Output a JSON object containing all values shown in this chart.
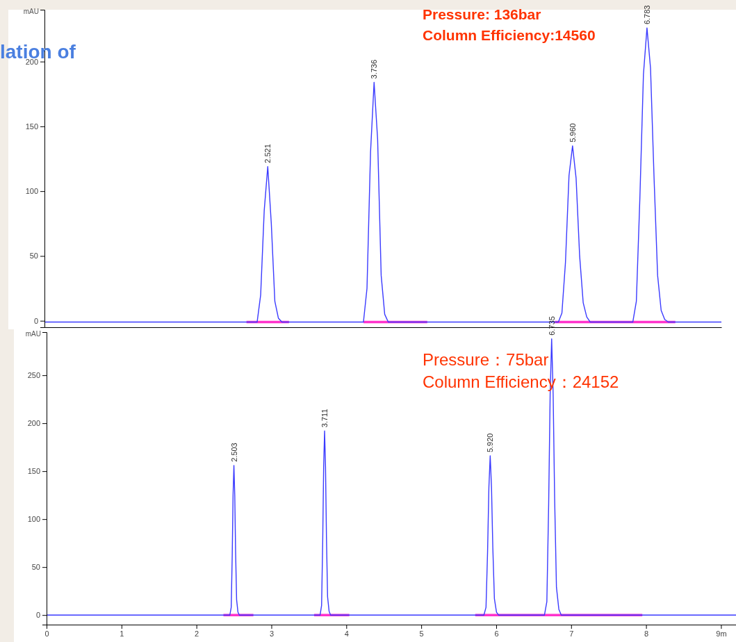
{
  "chart_data": [
    {
      "type": "line",
      "title": "lation of",
      "ylabel": "mAU",
      "tick_labels": "y",
      "grid": false,
      "marker": "none",
      "line_style": "solid",
      "ylim": [
        -5,
        240
      ],
      "yticks": [
        0,
        50,
        100,
        150,
        200
      ],
      "categories": [
        null,
        null,
        null,
        null,
        null,
        null,
        null,
        null,
        null,
        null,
        null,
        null,
        null,
        null,
        null,
        null,
        null,
        null,
        null,
        null,
        null,
        null,
        null,
        null,
        null,
        null,
        null,
        null,
        null,
        null,
        null,
        null,
        null,
        null,
        null,
        null,
        null,
        null,
        null,
        null,
        null,
        null,
        null,
        null,
        null,
        null,
        null,
        null,
        null,
        null,
        null,
        null,
        null,
        null,
        null,
        null,
        null,
        null,
        null,
        null,
        null,
        null,
        null,
        null,
        null,
        null,
        null,
        null,
        null,
        null,
        null,
        null,
        null,
        null,
        null,
        null,
        null,
        null,
        null,
        null,
        null,
        null,
        null,
        null,
        null,
        null,
        null,
        null,
        null,
        null,
        null,
        null,
        null,
        null,
        null,
        null,
        null,
        null,
        null,
        null,
        null,
        null,
        null,
        null,
        null,
        null,
        null,
        null,
        null,
        null,
        null,
        null,
        null,
        null,
        null,
        null,
        null,
        null,
        null,
        null,
        null,
        null,
        null,
        null,
        null,
        null,
        null,
        null,
        null,
        null,
        null,
        null,
        null,
        null,
        null,
        null,
        null,
        null,
        null,
        null,
        null,
        null,
        null,
        null,
        null,
        null,
        null,
        null,
        null,
        null,
        null,
        null,
        null,
        null,
        null,
        null,
        null,
        null,
        null,
        null,
        null,
        null,
        null,
        null,
        null,
        null,
        null,
        null,
        null,
        null,
        null,
        null,
        null,
        null,
        null,
        null,
        null,
        null,
        null,
        null,
        null,
        null,
        null,
        null,
        null,
        null,
        null,
        null,
        null,
        null,
        null,
        null
      ],
      "series": [
        {
          "color": "#3b3bff",
          "values": [
            -1,
            -1,
            -1,
            -1,
            -1,
            -1,
            -1,
            -1,
            -1,
            -1,
            -1,
            -1,
            -1,
            -1,
            -1,
            -1,
            -1,
            -1,
            -1,
            -1,
            -1,
            -1,
            -1,
            -1,
            -1,
            -1,
            -1,
            -1,
            -1,
            -1,
            -1,
            -1,
            -1,
            -1,
            -1,
            -1,
            -1,
            -1,
            -1,
            -1,
            -1,
            -1,
            -1,
            -1,
            -1,
            -1,
            -1,
            -1,
            -1,
            -1,
            -1,
            -1,
            -1,
            -1,
            -1,
            -1,
            -1,
            -1,
            -1,
            -1,
            -1,
            20,
            85,
            119,
            75,
            15,
            2,
            -1,
            -1,
            -1,
            -1,
            -1,
            -1,
            -1,
            -1,
            -1,
            -1,
            -1,
            -1,
            -1,
            -1,
            -1,
            -1,
            -1,
            -1,
            -1,
            -1,
            -1,
            -1,
            -1,
            -1,
            25,
            130,
            184,
            140,
            35,
            5,
            -1,
            -1,
            -1,
            -1,
            -1,
            -1,
            -1,
            -1,
            -1,
            -1,
            -1,
            -1,
            -1,
            -1,
            -1,
            -1,
            -1,
            -1,
            -1,
            -1,
            -1,
            -1,
            -1,
            -1,
            -1,
            -1,
            -1,
            -1,
            -1,
            -1,
            -1,
            -1,
            -1,
            -1,
            -1,
            -1,
            -1,
            -1,
            -1,
            -1,
            -1,
            -1,
            -1,
            -1,
            -1,
            -1,
            -1,
            -1,
            -1,
            6,
            45,
            112,
            135,
            110,
            50,
            14,
            3,
            -1,
            -1,
            -1,
            -1,
            -1,
            -1,
            -1,
            -1,
            -1,
            -1,
            -1,
            -1,
            -1,
            15,
            95,
            190,
            226,
            195,
            110,
            35,
            8,
            1,
            -1,
            -1,
            -1,
            -1,
            -1,
            -1,
            -1,
            -1,
            -1,
            -1,
            -1,
            -1,
            -1,
            -1,
            -1,
            -1
          ]
        },
        {
          "color": "#ff33cc",
          "values": [
            null,
            null,
            null,
            null,
            null,
            null,
            null,
            null,
            null,
            null,
            null,
            null,
            null,
            null,
            null,
            null,
            null,
            null,
            null,
            null,
            null,
            null,
            null,
            null,
            null,
            null,
            null,
            null,
            null,
            null,
            null,
            null,
            null,
            null,
            null,
            null,
            null,
            null,
            null,
            null,
            null,
            null,
            null,
            null,
            null,
            null,
            null,
            null,
            null,
            null,
            null,
            null,
            null,
            null,
            null,
            null,
            null,
            -1,
            -1,
            -1,
            -1,
            -1,
            -1,
            -1,
            -1,
            -1,
            -1,
            -1,
            -1,
            -1,
            null,
            null,
            null,
            null,
            null,
            null,
            null,
            null,
            null,
            null,
            null,
            null,
            null,
            null,
            null,
            null,
            null,
            null,
            null,
            null,
            -1,
            -1,
            -1,
            -1,
            -1,
            -1,
            -1,
            -1,
            -1,
            -1,
            -1,
            -1,
            -1,
            -1,
            -1,
            -1,
            -1,
            -1,
            -1,
            null,
            null,
            null,
            null,
            null,
            null,
            null,
            null,
            null,
            null,
            null,
            null,
            null,
            null,
            null,
            null,
            null,
            null,
            null,
            null,
            null,
            null,
            null,
            null,
            null,
            null,
            null,
            null,
            null,
            null,
            null,
            null,
            null,
            null,
            null,
            -1,
            -1,
            -1,
            -1,
            -1,
            -1,
            -1,
            -1,
            -1,
            -1,
            -1,
            -1,
            -1,
            -1,
            -1,
            -1,
            -1,
            -1,
            -1,
            -1,
            -1,
            -1,
            -1,
            -1,
            -1,
            -1,
            -1,
            -1,
            -1,
            -1,
            -1,
            -1,
            -1,
            -1,
            -1,
            null,
            null,
            null,
            null,
            null,
            null,
            null,
            null,
            null,
            null,
            null,
            null,
            null
          ]
        }
      ],
      "annotations": [
        "Pressure: 136bar",
        "Column Efficiency:14560",
        {
          "text": "2.521",
          "y": 119
        },
        {
          "text": "3.736",
          "y": 184
        },
        {
          "text": "5.960",
          "y": 135
        },
        {
          "text": "6.783",
          "y": 226
        }
      ]
    },
    {
      "type": "line",
      "ylabel": "mAU",
      "grid": false,
      "marker": "none",
      "line_style": "solid",
      "xlim": [
        0,
        9.2
      ],
      "xticks": [
        0,
        1,
        2,
        3,
        4,
        5,
        6,
        7,
        8,
        {
          "value": 9,
          "label": "9m"
        }
      ],
      "ylim": [
        -10,
        295
      ],
      "yticks": [
        0,
        50,
        100,
        150,
        200,
        250
      ],
      "series": [
        {
          "color": "#3b3bff",
          "x": [
            0,
            2.446,
            2.464,
            2.4775,
            2.48875,
            2.5,
            2.51125,
            2.5225,
            2.536,
            2.554,
            2.572,
            3.65,
            3.67,
            3.685,
            3.6975,
            3.71,
            3.7225,
            3.735,
            3.75,
            3.77,
            3.79,
            5.836,
            5.864,
            5.885,
            5.9025,
            5.92,
            5.9375,
            5.955,
            5.976,
            6.004,
            6.032,
            6.644,
            6.676,
            6.7,
            6.72,
            6.74,
            6.76,
            6.78,
            6.804,
            6.836,
            6.868,
            9.2
          ],
          "values": [
            0,
            0,
            8,
            62,
            125,
            156,
            125,
            66,
            16,
            3,
            0,
            0,
            10,
            77,
            154,
            192,
            154,
            81,
            19,
            4,
            0,
            0,
            8,
            66,
            133,
            166,
            133,
            70,
            17,
            3,
            0,
            0,
            14,
            115,
            230,
            288,
            230,
            121,
            29,
            6,
            0,
            0
          ]
        },
        {
          "color": "#ff33cc",
          "x": [
            2.36,
            2.76,
            2.77,
            3.57,
            4.04,
            4.05,
            5.72,
            7.95
          ],
          "values": [
            0,
            0,
            null,
            0,
            0,
            null,
            0,
            0
          ]
        }
      ],
      "annotations": [
        "Pressure：75bar",
        "Column Efficiency：24152",
        {
          "text": "2.503",
          "x": 2.5,
          "y": 156
        },
        {
          "text": "3.711",
          "x": 3.71,
          "y": 192
        },
        {
          "text": "5.920",
          "x": 5.92,
          "y": 166
        },
        {
          "text": "6.735",
          "x": 6.74,
          "y": 288
        }
      ]
    }
  ]
}
